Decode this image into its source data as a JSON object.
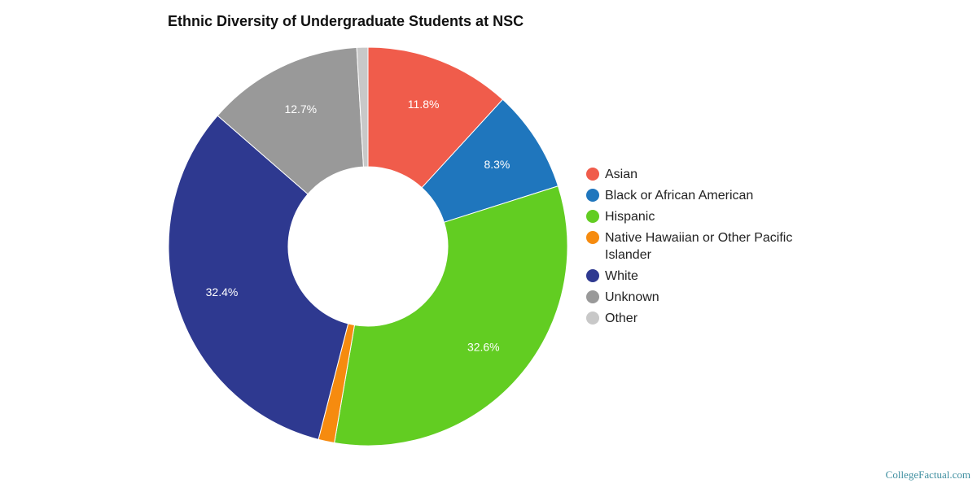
{
  "chart_data": {
    "type": "pie",
    "title": "Ethnic Diversity of Undergraduate Students at NSC",
    "categories": [
      "Asian",
      "Black or African American",
      "Hispanic",
      "Native Hawaiian or Other Pacific Islander",
      "White",
      "Unknown",
      "Other"
    ],
    "values": [
      11.8,
      8.3,
      32.6,
      1.3,
      32.4,
      12.7,
      0.9
    ],
    "data_labels": [
      "11.8%",
      "8.3%",
      "32.6%",
      "",
      "32.4%",
      "12.7%",
      ""
    ],
    "colors": [
      "#f05c4b",
      "#1f76bd",
      "#62cd22",
      "#f68b0f",
      "#2e3990",
      "#999999",
      "#c8c8c8"
    ],
    "legend_placement": "right",
    "donut": true
  },
  "watermark": "CollegeFactual.com"
}
